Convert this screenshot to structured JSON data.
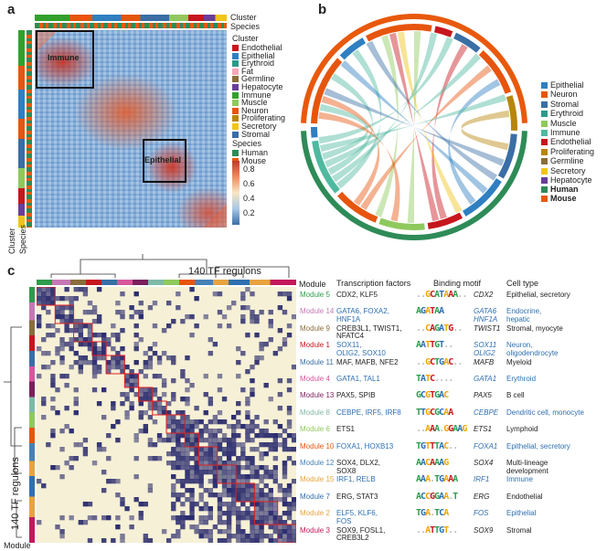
{
  "panel_a": {
    "letter": "a",
    "top_labels": [
      "Cluster",
      "Species"
    ],
    "left_labels": [
      "Cluster",
      "Species"
    ],
    "boxes": [
      "Immune",
      "Epithelial"
    ],
    "legend_cluster_title": "Cluster",
    "legend_cluster": [
      {
        "label": "Endothelial",
        "color": "#c7161d"
      },
      {
        "label": "Epithelial",
        "color": "#2f7fc1"
      },
      {
        "label": "Erythroid",
        "color": "#2a9a8a"
      },
      {
        "label": "Fat",
        "color": "#f4a6b6"
      },
      {
        "label": "Germline",
        "color": "#8a6d3b"
      },
      {
        "label": "Hepatocyte",
        "color": "#6a3d9a"
      },
      {
        "label": "Immune",
        "color": "#33a02c"
      },
      {
        "label": "Muscle",
        "color": "#8fc95d"
      },
      {
        "label": "Neuron",
        "color": "#e6550d"
      },
      {
        "label": "Proliferating",
        "color": "#b8860b"
      },
      {
        "label": "Secretory",
        "color": "#f0c419"
      },
      {
        "label": "Stromal",
        "color": "#3a6ea5"
      }
    ],
    "legend_species_title": "Species",
    "legend_species": [
      {
        "label": "Human",
        "color": "#2e8b57"
      },
      {
        "label": "Mouse",
        "color": "#e8590c"
      }
    ],
    "colorbar_ticks": [
      "0.8",
      "0.6",
      "0.4",
      "0.2"
    ]
  },
  "panel_b": {
    "letter": "b",
    "legend": [
      {
        "label": "Epithelial",
        "color": "#2f7fc1"
      },
      {
        "label": "Neuron",
        "color": "#e6550d"
      },
      {
        "label": "Stromal",
        "color": "#3a6ea5"
      },
      {
        "label": "Erythroid",
        "color": "#2a9a8a"
      },
      {
        "label": "Muscle",
        "color": "#8fc95d"
      },
      {
        "label": "Immune",
        "color": "#4fb99f"
      },
      {
        "label": "Endothelial",
        "color": "#c7161d"
      },
      {
        "label": "Proliferating",
        "color": "#b8860b"
      },
      {
        "label": "Germline",
        "color": "#8a6d3b"
      },
      {
        "label": "Secretory",
        "color": "#f0c419"
      },
      {
        "label": "Hepatocyte",
        "color": "#6a3d9a"
      }
    ],
    "species": [
      {
        "label": "Human",
        "color": "#2e8b57"
      },
      {
        "label": "Mouse",
        "color": "#e8590c"
      }
    ]
  },
  "panel_c": {
    "letter": "c",
    "top_title": "140 TF regulons",
    "left_title": "140 TF regulons",
    "module_top": "Module",
    "module_bottom": "Module",
    "headers": {
      "tf": "Transcription factors",
      "motif": "Binding motif",
      "cell": "Cell type"
    },
    "rows": [
      {
        "module": "Module 5",
        "mcolor": "#2e9c4a",
        "tf": [
          "CDX2, KLF5"
        ],
        "tfcolor": "#222",
        "motif": "..GCATAAA..",
        "gene": "CDX2",
        "cell": [
          "Epithelial, secretory"
        ],
        "ccolor": "#222"
      },
      {
        "module": "Module 14",
        "mcolor": "#c678b5",
        "tf": [
          "GATA6, FOXA2,",
          "HNF1A"
        ],
        "tfcolor": "#2f6fb0",
        "motif": "AGATAA",
        "gene": "GATA6",
        "gene2": "HNF1A",
        "cell": [
          "Endocrine,",
          "hepatic"
        ],
        "ccolor": "#2f6fb0"
      },
      {
        "module": "Module 9",
        "mcolor": "#8a6d3b",
        "tf": [
          "CREB3L1, TWIST1,",
          "NFATC4"
        ],
        "tfcolor": "#222",
        "motif": "..CAGATG..",
        "gene": "TWIST1",
        "cell": [
          "Stromal, myocyte"
        ],
        "ccolor": "#222"
      },
      {
        "module": "Module 1",
        "mcolor": "#c7161d",
        "tf": [
          "SOX11,",
          "OLIG2, SOX10"
        ],
        "tfcolor": "#2f6fb0",
        "motif": "AATTGT..",
        "gene": "SOX11",
        "gene2": "OLIG2",
        "cell": [
          "Neuron,",
          "oligodendrocyte"
        ],
        "ccolor": "#2f6fb0"
      },
      {
        "module": "Module 11",
        "mcolor": "#3a6ea5",
        "tf": [
          "MAF, MAFB, NFE2"
        ],
        "tfcolor": "#222",
        "motif": "..GCTGAC..",
        "gene": "MAFB",
        "cell": [
          "Myeloid"
        ],
        "ccolor": "#222"
      },
      {
        "module": "Module 4",
        "mcolor": "#d9559c",
        "tf": [
          "GATA1, TAL1"
        ],
        "tfcolor": "#2f6fb0",
        "motif": "TATC....",
        "gene": "GATA1",
        "cell": [
          "Erythroid"
        ],
        "ccolor": "#2f6fb0"
      },
      {
        "module": "Module 13",
        "mcolor": "#7a1f5c",
        "tf": [
          "PAX5, SPIB"
        ],
        "tfcolor": "#222",
        "motif": "GCGTGAC",
        "gene": "PAX5",
        "cell": [
          "B cell"
        ],
        "ccolor": "#222"
      },
      {
        "module": "Module 8",
        "mcolor": "#7fb9a8",
        "tf": [
          "CEBPE, IRF5, IRF8"
        ],
        "tfcolor": "#2f6fb0",
        "motif": "TTGCGCAA",
        "gene": "CEBPE",
        "cell": [
          "Dendritic cell, monocyte"
        ],
        "ccolor": "#2f6fb0"
      },
      {
        "module": "Module 6",
        "mcolor": "#8fc95d",
        "tf": [
          "ETS1"
        ],
        "tfcolor": "#222",
        "motif": "..AAA.GGAAG",
        "gene": "ETS1",
        "cell": [
          "Lymphoid"
        ],
        "ccolor": "#222"
      },
      {
        "module": "Module 10",
        "mcolor": "#e6550d",
        "tf": [
          "FOXA1, HOXB13"
        ],
        "tfcolor": "#2f6fb0",
        "motif": "TGTTTAC..",
        "gene": "FOXA1",
        "cell": [
          "Epithelial, secretory"
        ],
        "ccolor": "#2f6fb0"
      },
      {
        "module": "Module 12",
        "mcolor": "#4682b4",
        "tf": [
          "SOX4, DLX2,",
          "SOX8"
        ],
        "tfcolor": "#222",
        "motif": "AACAAAG",
        "gene": "SOX4",
        "cell": [
          "Multi-lineage",
          "development"
        ],
        "ccolor": "#222"
      },
      {
        "module": "Module 15",
        "mcolor": "#e8a33d",
        "tf": [
          "IRF1, RELB"
        ],
        "tfcolor": "#2f6fb0",
        "motif": "AAA.TGAAA",
        "gene": "IRF1",
        "cell": [
          "Immune"
        ],
        "ccolor": "#2f6fb0"
      },
      {
        "module": "Module 7",
        "mcolor": "#2f6fb0",
        "tf": [
          "ERG, STAT3"
        ],
        "tfcolor": "#222",
        "motif": "ACCGGAA.T",
        "gene": "ERG",
        "cell": [
          "Endothelial"
        ],
        "ccolor": "#222"
      },
      {
        "module": "Module 2",
        "mcolor": "#e8a33d",
        "tf": [
          "ELF5, KLF6,",
          "FOS"
        ],
        "tfcolor": "#2f6fb0",
        "motif": "TGA.TCA",
        "gene": "FOS",
        "cell": [
          "Epithelial"
        ],
        "ccolor": "#2f6fb0"
      },
      {
        "module": "Module 3",
        "mcolor": "#c2185b",
        "tf": [
          "SOX9, FOSL1,",
          "CREB3L2"
        ],
        "tfcolor": "#222",
        "motif": "..ATTGT..",
        "gene": "SOX9",
        "cell": [
          "Stromal"
        ],
        "ccolor": "#222"
      }
    ]
  }
}
